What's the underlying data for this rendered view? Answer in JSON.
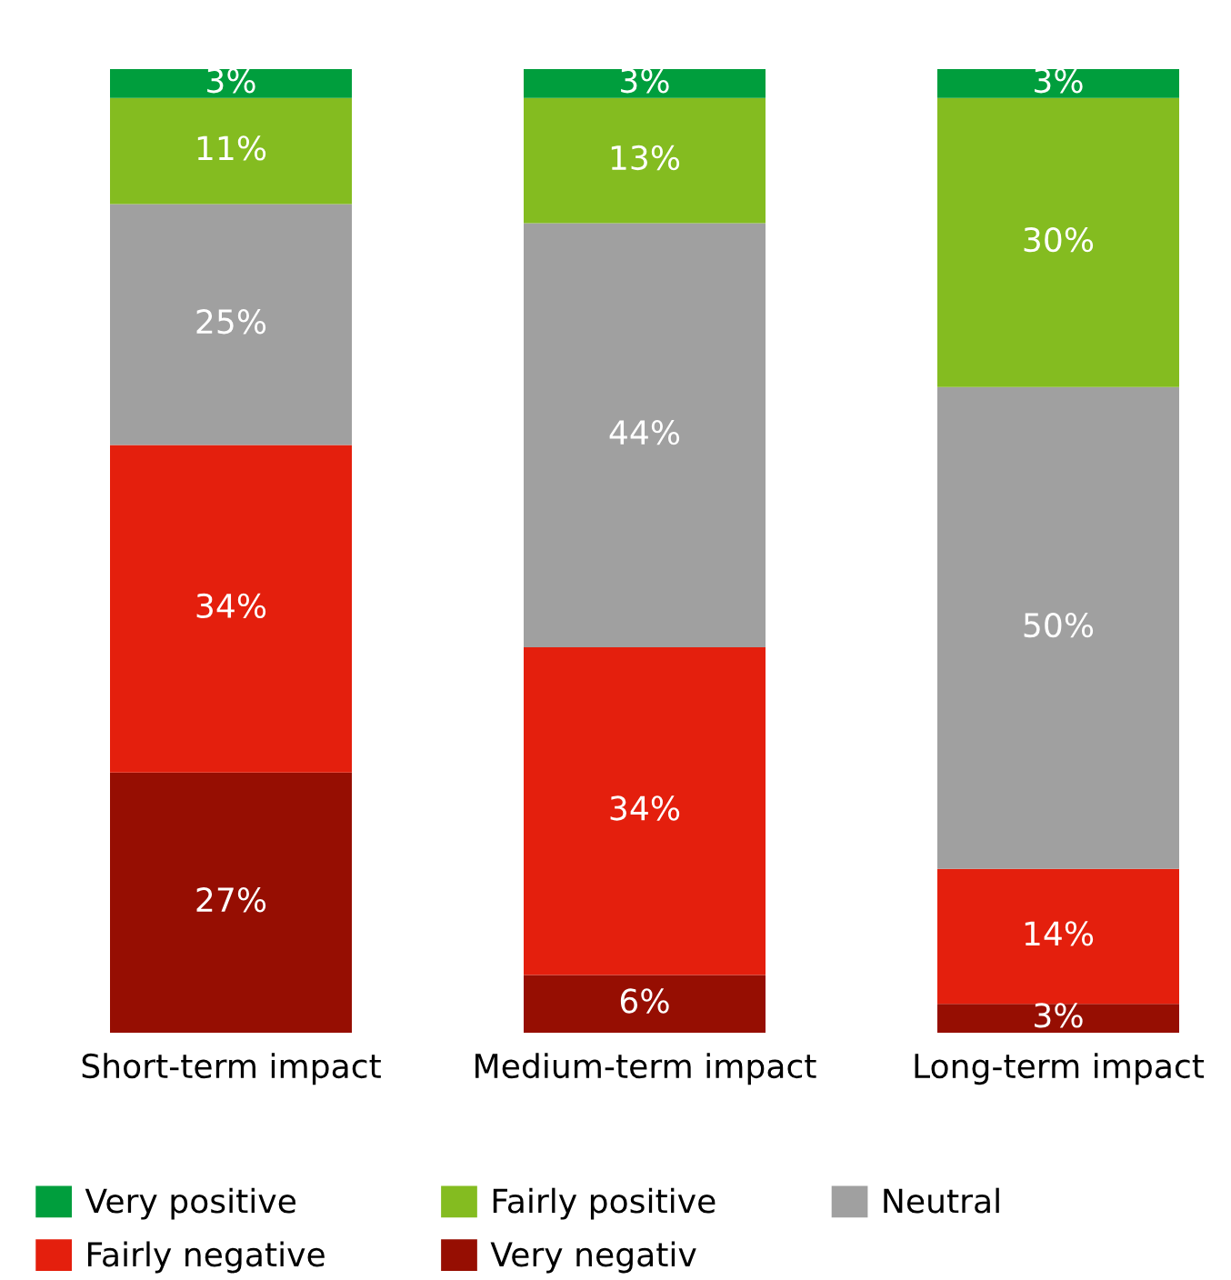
{
  "chart_data": {
    "type": "bar",
    "stacked": true,
    "categories": [
      "Short-term impact",
      "Medium-term impact",
      "Long-term impact"
    ],
    "series": [
      {
        "name": "Very negativ",
        "color": "#960e02",
        "values": [
          27,
          6,
          3
        ],
        "value_labels": [
          "27%",
          "6%",
          "3%"
        ]
      },
      {
        "name": "Fairly negative",
        "color": "#e41f0d",
        "values": [
          34,
          34,
          14
        ],
        "value_labels": [
          "34%",
          "34%",
          "14%"
        ]
      },
      {
        "name": "Neutral",
        "color": "#a0a0a0",
        "values": [
          25,
          44,
          50
        ],
        "value_labels": [
          "25%",
          "44%",
          "50%"
        ]
      },
      {
        "name": "Fairly positive",
        "color": "#84bc20",
        "values": [
          11,
          13,
          30
        ],
        "value_labels": [
          "11%",
          "13%",
          "30%"
        ]
      },
      {
        "name": "Very positive",
        "color": "#009e3d",
        "values": [
          3,
          3,
          3
        ],
        "value_labels": [
          "3%",
          "3%",
          "3%"
        ]
      }
    ],
    "legend": "bottom",
    "grid": false,
    "tick_labels": "x"
  }
}
